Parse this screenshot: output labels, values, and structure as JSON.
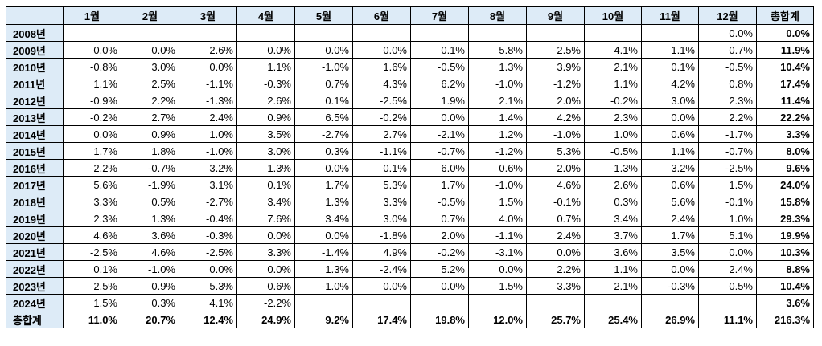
{
  "header": {
    "corner": "",
    "columns": [
      "1월",
      "2월",
      "3월",
      "4월",
      "5월",
      "6월",
      "7월",
      "8월",
      "9월",
      "10월",
      "11월",
      "12월",
      "총합계"
    ]
  },
  "rows": [
    {
      "year": "2008년",
      "values": [
        "",
        "",
        "",
        "",
        "",
        "",
        "",
        "",
        "",
        "",
        "",
        "0.0%"
      ],
      "total": "0.0%"
    },
    {
      "year": "2009년",
      "values": [
        "0.0%",
        "0.0%",
        "2.6%",
        "0.0%",
        "0.0%",
        "0.0%",
        "0.1%",
        "5.8%",
        "-2.5%",
        "4.1%",
        "1.1%",
        "0.7%"
      ],
      "total": "11.9%"
    },
    {
      "year": "2010년",
      "values": [
        "-0.8%",
        "3.0%",
        "0.0%",
        "1.1%",
        "-1.0%",
        "1.6%",
        "-0.5%",
        "1.3%",
        "3.9%",
        "2.1%",
        "0.1%",
        "-0.5%"
      ],
      "total": "10.4%"
    },
    {
      "year": "2011년",
      "values": [
        "1.1%",
        "2.5%",
        "-1.1%",
        "-0.3%",
        "0.7%",
        "4.3%",
        "6.2%",
        "-1.0%",
        "-1.2%",
        "1.1%",
        "4.2%",
        "0.8%"
      ],
      "total": "17.4%"
    },
    {
      "year": "2012년",
      "values": [
        "-0.9%",
        "2.2%",
        "-1.3%",
        "2.6%",
        "0.1%",
        "-2.5%",
        "1.9%",
        "2.1%",
        "2.0%",
        "-0.2%",
        "3.0%",
        "2.3%"
      ],
      "total": "11.4%"
    },
    {
      "year": "2013년",
      "values": [
        "-0.2%",
        "2.7%",
        "2.4%",
        "0.9%",
        "6.5%",
        "-0.2%",
        "0.0%",
        "1.4%",
        "4.2%",
        "2.3%",
        "0.0%",
        "2.2%"
      ],
      "total": "22.2%"
    },
    {
      "year": "2014년",
      "values": [
        "0.0%",
        "0.9%",
        "1.0%",
        "3.5%",
        "-2.7%",
        "2.7%",
        "-2.1%",
        "1.2%",
        "-1.0%",
        "1.0%",
        "0.6%",
        "-1.7%"
      ],
      "total": "3.3%"
    },
    {
      "year": "2015년",
      "values": [
        "1.7%",
        "1.8%",
        "-1.0%",
        "3.0%",
        "0.3%",
        "-1.1%",
        "-0.7%",
        "-1.2%",
        "5.3%",
        "-0.5%",
        "1.1%",
        "-0.7%"
      ],
      "total": "8.0%"
    },
    {
      "year": "2016년",
      "values": [
        "-2.2%",
        "-0.7%",
        "3.2%",
        "1.3%",
        "0.0%",
        "0.1%",
        "6.0%",
        "0.6%",
        "2.0%",
        "-1.3%",
        "3.2%",
        "-2.5%"
      ],
      "total": "9.6%"
    },
    {
      "year": "2017년",
      "values": [
        "5.6%",
        "-1.9%",
        "3.1%",
        "0.1%",
        "1.7%",
        "5.3%",
        "1.7%",
        "-1.0%",
        "4.6%",
        "2.6%",
        "0.6%",
        "1.5%"
      ],
      "total": "24.0%"
    },
    {
      "year": "2018년",
      "values": [
        "3.3%",
        "0.5%",
        "-2.7%",
        "3.4%",
        "1.3%",
        "3.3%",
        "-0.5%",
        "1.5%",
        "-0.1%",
        "0.3%",
        "5.6%",
        "-0.1%"
      ],
      "total": "15.8%"
    },
    {
      "year": "2019년",
      "values": [
        "2.3%",
        "1.3%",
        "-0.4%",
        "7.6%",
        "3.4%",
        "3.0%",
        "0.7%",
        "4.0%",
        "0.7%",
        "3.4%",
        "2.4%",
        "1.0%"
      ],
      "total": "29.3%"
    },
    {
      "year": "2020년",
      "values": [
        "4.6%",
        "3.6%",
        "-0.3%",
        "0.0%",
        "0.0%",
        "-1.8%",
        "2.0%",
        "-1.1%",
        "2.4%",
        "3.7%",
        "1.7%",
        "5.1%"
      ],
      "total": "19.9%"
    },
    {
      "year": "2021년",
      "values": [
        "-2.5%",
        "4.6%",
        "-2.5%",
        "3.3%",
        "-1.4%",
        "4.9%",
        "-0.2%",
        "-3.1%",
        "0.0%",
        "3.6%",
        "3.5%",
        "0.0%"
      ],
      "total": "10.3%"
    },
    {
      "year": "2022년",
      "values": [
        "0.1%",
        "-1.0%",
        "0.0%",
        "0.0%",
        "1.3%",
        "-2.4%",
        "5.2%",
        "0.0%",
        "2.2%",
        "1.1%",
        "0.0%",
        "2.4%"
      ],
      "total": "8.8%"
    },
    {
      "year": "2023년",
      "values": [
        "-2.5%",
        "0.9%",
        "5.3%",
        "0.6%",
        "-1.0%",
        "0.0%",
        "0.0%",
        "1.5%",
        "3.3%",
        "2.1%",
        "-0.3%",
        "0.5%"
      ],
      "total": "10.4%"
    },
    {
      "year": "2024년",
      "values": [
        "1.5%",
        "0.3%",
        "4.1%",
        "-2.2%",
        "",
        "",
        "",
        "",
        "",
        "",
        "",
        ""
      ],
      "total": "3.6%"
    }
  ],
  "footer": {
    "label": "총합계",
    "values": [
      "11.0%",
      "20.7%",
      "12.4%",
      "24.9%",
      "9.2%",
      "17.4%",
      "19.8%",
      "12.0%",
      "25.7%",
      "25.4%",
      "26.9%",
      "11.1%"
    ],
    "total": "216.3%"
  },
  "colors": {
    "header_bg": "#ddebf7",
    "border": "#000000"
  }
}
